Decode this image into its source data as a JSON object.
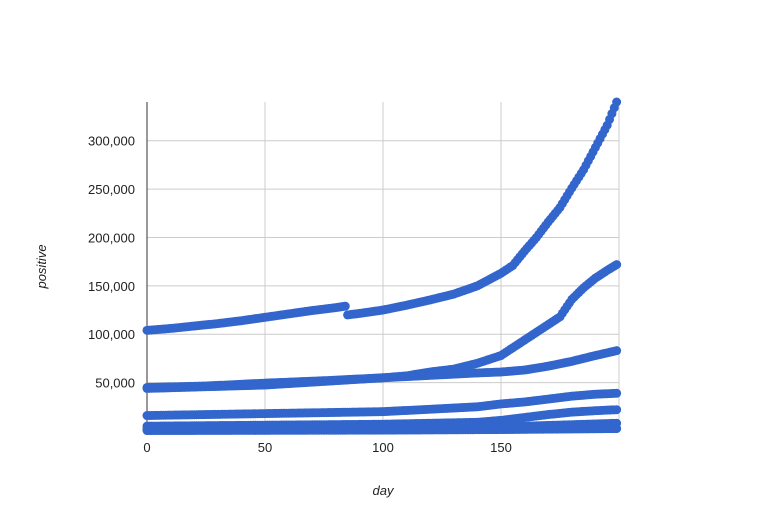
{
  "chart_data": {
    "type": "scatter",
    "xlabel": "day",
    "ylabel": "positive",
    "xlim": [
      0,
      200
    ],
    "ylim": [
      0,
      340000
    ],
    "x_ticks": [
      0,
      50,
      100,
      150
    ],
    "x_tick_labels": [
      "0",
      "50",
      "100",
      "150"
    ],
    "y_ticks": [
      50000,
      100000,
      150000,
      200000,
      250000,
      300000
    ],
    "y_tick_labels": [
      "50,000",
      "100,000",
      "150,000",
      "200,000",
      "250,000",
      "300,000"
    ],
    "grid": true,
    "legend": "none",
    "marker_color": "#3366cc",
    "series": [
      {
        "x": [
          0,
          10,
          20,
          30,
          40,
          50,
          60,
          70,
          80,
          84,
          85,
          90,
          100,
          110,
          120,
          130,
          140,
          150,
          155,
          160,
          165,
          170,
          175,
          180,
          185,
          190,
          195,
          199
        ],
        "values": [
          104000,
          106000,
          108500,
          111000,
          114000,
          117500,
          121000,
          124500,
          127500,
          129000,
          120000,
          121500,
          125000,
          130000,
          135500,
          141500,
          150000,
          163000,
          171000,
          186000,
          200000,
          216000,
          231000,
          251000,
          270000,
          293000,
          316000,
          340000
        ]
      },
      {
        "x": [
          0,
          25,
          50,
          75,
          100,
          110,
          120,
          130,
          140,
          150,
          160,
          170,
          175,
          180,
          185,
          190,
          195,
          199
        ],
        "values": [
          45000,
          46500,
          49500,
          52000,
          55000,
          57000,
          61000,
          64000,
          70000,
          78000,
          94000,
          110000,
          118000,
          136000,
          148000,
          158000,
          166000,
          172000
        ]
      },
      {
        "x": [
          0,
          50,
          100,
          120,
          140,
          150,
          160,
          170,
          180,
          190,
          199
        ],
        "values": [
          44000,
          47500,
          55000,
          57500,
          60000,
          61000,
          63000,
          67000,
          72000,
          78000,
          83000
        ]
      },
      {
        "x": [
          0,
          50,
          100,
          120,
          140,
          150,
          160,
          170,
          180,
          190,
          199
        ],
        "values": [
          16000,
          18000,
          20000,
          22500,
          25000,
          28000,
          30000,
          33000,
          36000,
          38000,
          39000
        ]
      },
      {
        "x": [
          0,
          50,
          100,
          140,
          150,
          160,
          170,
          180,
          190,
          199
        ],
        "values": [
          5000,
          6000,
          7000,
          9000,
          11000,
          14000,
          17000,
          19500,
          21000,
          22000
        ]
      },
      {
        "x": [
          0,
          50,
          100,
          140,
          160,
          180,
          199
        ],
        "values": [
          2000,
          2500,
          3000,
          4000,
          5000,
          6500,
          8000
        ]
      },
      {
        "x": [
          0,
          50,
          100,
          150,
          199
        ],
        "values": [
          500,
          700,
          900,
          1500,
          2500
        ]
      }
    ]
  }
}
